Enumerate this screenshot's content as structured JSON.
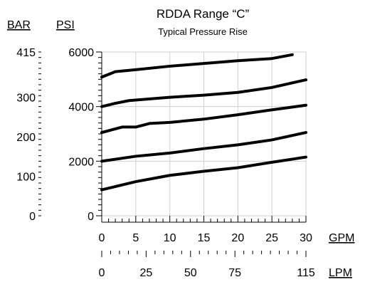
{
  "chart_data": {
    "type": "line",
    "title": "RDDA Range “C”",
    "subtitle": "Typical Pressure Rise",
    "left_unit_label": "BAR",
    "primary_y_unit_label": "PSI",
    "x_unit_label": "GPM",
    "secondary_x_unit_label": "LPM",
    "x_axis": {
      "min": 0,
      "max": 30,
      "ticks": [
        "0",
        "5",
        "10",
        "15",
        "20",
        "25",
        "30"
      ]
    },
    "secondary_x_axis": {
      "ticks": [
        "0",
        "25",
        "50",
        "75",
        "115"
      ]
    },
    "y_axis": {
      "min": 0,
      "max": 6000,
      "ticks": [
        "0",
        "2000",
        "4000",
        "6000"
      ]
    },
    "left_axis": {
      "ticks": [
        "0",
        "100",
        "200",
        "300",
        "415"
      ]
    },
    "grid": {
      "vertical_lines": true,
      "horizontal_lines": true
    },
    "series": [
      {
        "x": [
          0,
          2,
          5,
          10,
          15,
          20,
          25,
          28
        ],
        "y": [
          5080,
          5280,
          5350,
          5480,
          5580,
          5680,
          5760,
          5900
        ]
      },
      {
        "x": [
          0,
          2,
          4,
          10,
          15,
          20,
          25,
          30
        ],
        "y": [
          4000,
          4120,
          4220,
          4340,
          4420,
          4520,
          4700,
          4980
        ]
      },
      {
        "x": [
          0,
          3,
          5,
          7,
          10,
          15,
          20,
          25,
          30
        ],
        "y": [
          3050,
          3250,
          3250,
          3380,
          3420,
          3540,
          3700,
          3880,
          4050
        ]
      },
      {
        "x": [
          0,
          5,
          10,
          15,
          20,
          25,
          30
        ],
        "y": [
          2000,
          2180,
          2300,
          2460,
          2600,
          2780,
          3050
        ]
      },
      {
        "x": [
          0,
          5,
          10,
          15,
          20,
          25,
          30
        ],
        "y": [
          950,
          1250,
          1480,
          1630,
          1760,
          1960,
          2150
        ]
      }
    ]
  }
}
